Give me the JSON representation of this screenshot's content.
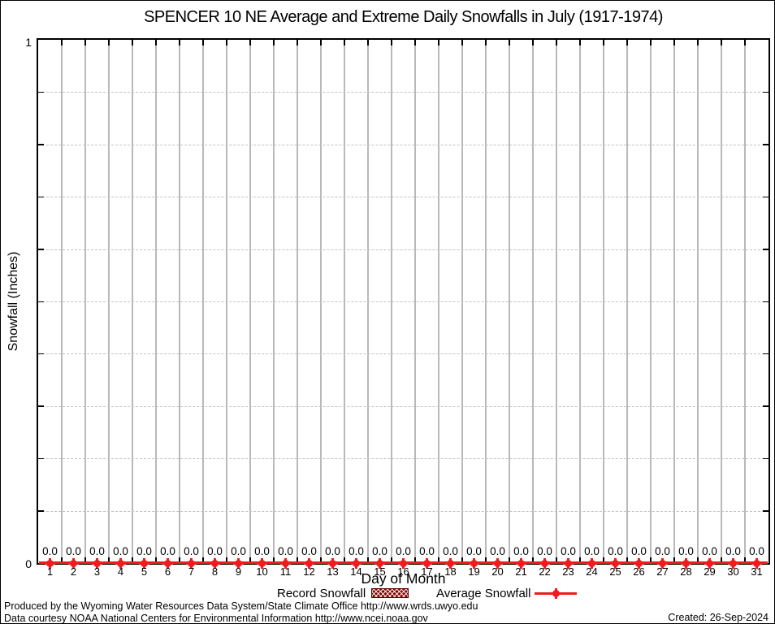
{
  "title": "SPENCER 10 NE Average and Extreme Daily Snowfalls in July (1917-1974)",
  "chart_data": {
    "type": "line",
    "title": "SPENCER 10 NE Average and Extreme Daily Snowfalls in July (1917-1974)",
    "xlabel": "Day of Month",
    "ylabel": "Snowfall (Inches)",
    "xlim": [
      0.5,
      31.5
    ],
    "ylim": [
      0,
      1
    ],
    "ytick_labels": [
      "0",
      "1"
    ],
    "y_minor_step": 0.1,
    "grid": "vertical solid lines at day boundaries; horizontal dashed lines every 0.1",
    "legend_position": "bottom-center",
    "x": [
      1,
      2,
      3,
      4,
      5,
      6,
      7,
      8,
      9,
      10,
      11,
      12,
      13,
      14,
      15,
      16,
      17,
      18,
      19,
      20,
      21,
      22,
      23,
      24,
      25,
      26,
      27,
      28,
      29,
      30,
      31
    ],
    "series": [
      {
        "name": "Record Snowfall",
        "style": "hatched-boxes",
        "values": [
          0,
          0,
          0,
          0,
          0,
          0,
          0,
          0,
          0,
          0,
          0,
          0,
          0,
          0,
          0,
          0,
          0,
          0,
          0,
          0,
          0,
          0,
          0,
          0,
          0,
          0,
          0,
          0,
          0,
          0,
          0
        ]
      },
      {
        "name": "Average Snowfall",
        "style": "line-with-points",
        "values": [
          0,
          0,
          0,
          0,
          0,
          0,
          0,
          0,
          0,
          0,
          0,
          0,
          0,
          0,
          0,
          0,
          0,
          0,
          0,
          0,
          0,
          0,
          0,
          0,
          0,
          0,
          0,
          0,
          0,
          0,
          0
        ]
      }
    ],
    "point_labels": [
      "0.0",
      "0.0",
      "0.0",
      "0.0",
      "0.0",
      "0.0",
      "0.0",
      "0.0",
      "0.0",
      "0.0",
      "0.0",
      "0.0",
      "0.0",
      "0.0",
      "0.0",
      "0.0",
      "0.0",
      "0.0",
      "0.0",
      "0.0",
      "0.0",
      "0.0",
      "0.0",
      "0.0",
      "0.0",
      "0.0",
      "0.0",
      "0.0",
      "0.0",
      "0.0",
      "0.0"
    ]
  },
  "y_axis": {
    "top_label": "1",
    "bottom_label": "0"
  },
  "legend": {
    "record_label": "Record Snowfall",
    "average_label": "Average Snowfall"
  },
  "colors": {
    "average_red": "#ee1c1c",
    "record_maroon": "#8b0000",
    "grid_gray": "#b9b9b9",
    "text": "#000000"
  },
  "footer": {
    "line1": "Produced by the Wyoming Water Resources Data System/State Climate Office http://www.wrds.uwyo.edu",
    "line2": "Data courtesy NOAA National Centers for Environmental Information http://www.ncei.noaa.gov",
    "created": "Created: 26-Sep-2024"
  }
}
